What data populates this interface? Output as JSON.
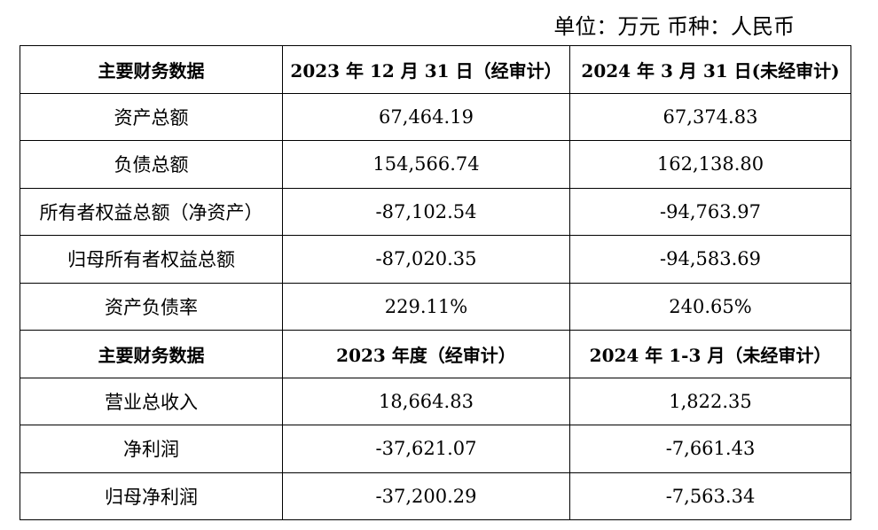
{
  "unit_note": "单位：万元 币种：人民币",
  "balance_header": [
    "主要财务数据",
    "2023 年 12 月 31 日（经审计）",
    "2024 年 3 月 31 日(未经审计)"
  ],
  "balance_rows": [
    {
      "label": "资产总额",
      "v2023": "67,464.19",
      "v2024": "67,374.83"
    },
    {
      "label": "负债总额",
      "v2023": "154,566.74",
      "v2024": "162,138.80"
    },
    {
      "label": "所有者权益总额（净资产）",
      "v2023": "-87,102.54",
      "v2024": "-94,763.97"
    },
    {
      "label": "归母所有者权益总额",
      "v2023": "-87,020.35",
      "v2024": "-94,583.69"
    },
    {
      "label": "资产负债率",
      "v2023": "229.11%",
      "v2024": "240.65%"
    }
  ],
  "income_header": [
    "主要财务数据",
    "2023 年度（经审计）",
    "2024 年 1-3 月（未经审计）"
  ],
  "income_rows": [
    {
      "label": "营业总收入",
      "v2023": "18,664.83",
      "v2024": "1,822.35"
    },
    {
      "label": "净利润",
      "v2023": "-37,621.07",
      "v2024": "-7,661.43"
    },
    {
      "label": "归母净利润",
      "v2023": "-37,200.29",
      "v2024": "-7,563.34"
    }
  ]
}
